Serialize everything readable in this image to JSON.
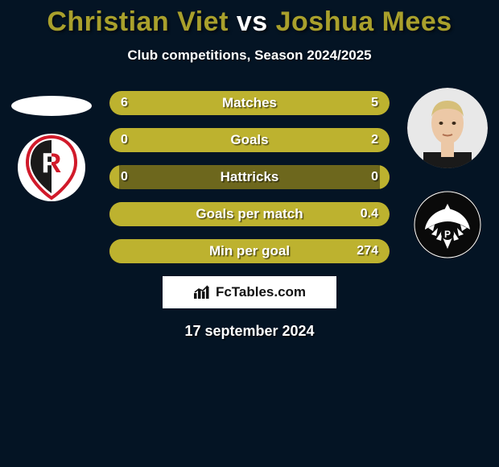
{
  "background_color": "#041424",
  "title": {
    "player1": "Christian Viet",
    "vs": "vs",
    "player2": "Joshua Mees",
    "player1_color": "#a9a02c",
    "vs_color": "#ffffff",
    "player2_color": "#a9a02c",
    "fontsize": 34
  },
  "subtitle": "Club competitions, Season 2024/2025",
  "left_player": {
    "avatar_type": "blank-ellipse",
    "club_logo": {
      "type": "jahn-regensburg",
      "bg": "#ffffff",
      "accent": "#d11a2a"
    }
  },
  "right_player": {
    "avatar_type": "photo",
    "avatar_bg": "#e0e0e0",
    "skin": "#eac3a2",
    "hair": "#d9c07a",
    "shirt": "#1a1a1a",
    "club_logo": {
      "type": "preussen-muenster",
      "bg": "#0a0a0a",
      "fg": "#ffffff"
    }
  },
  "bars": {
    "track_color": "#6d671d",
    "left_fill_color": "#bdb22f",
    "right_fill_color": "#bdb22f",
    "label_color": "#ffffff",
    "height": 30,
    "rows": [
      {
        "label": "Matches",
        "left": "6",
        "right": "5",
        "left_pct": 54.5,
        "right_pct": 45.5
      },
      {
        "label": "Goals",
        "left": "0",
        "right": "2",
        "left_pct": 3.5,
        "right_pct": 96.5
      },
      {
        "label": "Hattricks",
        "left": "0",
        "right": "0",
        "left_pct": 3.5,
        "right_pct": 3.5
      },
      {
        "label": "Goals per match",
        "left": "",
        "right": "0.4",
        "left_pct": 3.5,
        "right_pct": 96.5
      },
      {
        "label": "Min per goal",
        "left": "",
        "right": "274",
        "left_pct": 3.5,
        "right_pct": 96.5
      }
    ]
  },
  "branding": "FcTables.com",
  "date": "17 september 2024"
}
